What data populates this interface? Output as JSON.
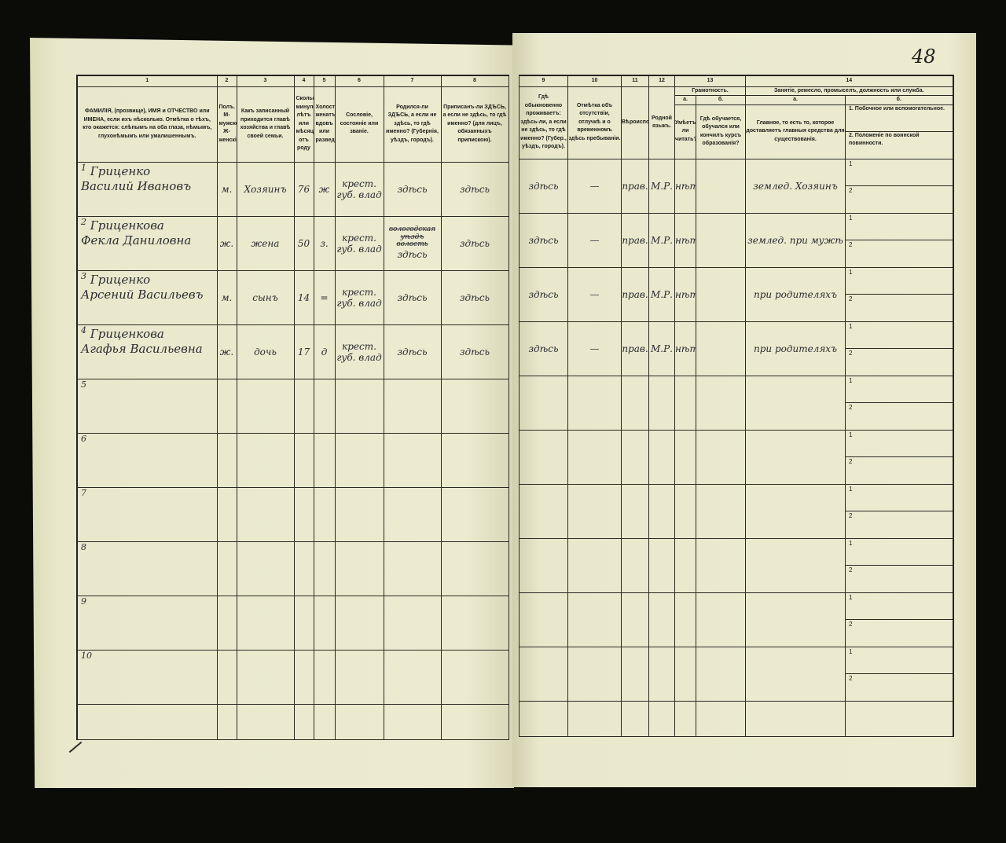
{
  "page_number": "48",
  "left_columns": {
    "numbers": [
      "1",
      "2",
      "3",
      "4",
      "5",
      "6",
      "7",
      "8"
    ],
    "headers": [
      "ФАМИЛІЯ, (прозвище), ИМЯ и ОТЧЕСТВО или ИМЕНА, если ихъ нѣсколько. Отмѣтка о тѣхъ, кто окажется: слѣпымъ на оба глаза, нѣмымъ, глухонѣмымъ или умалишеннымъ.",
      "Полъ. М-мужской. Ж-женскій.",
      "Какъ записанный приходится главѣ хозяйства и главѣ своей семьи.",
      "Сколько минуло лѣтъ или мѣсяцевъ отъ роду",
      "Холостъ, женатъ, вдовъ или разведенъ.",
      "Сословіе, состояніе или званіе.",
      "Родился-ли ЗДѢСЬ, а если не здѣсь, то гдѣ именно? (Губернія, уѣздъ, городъ).",
      "Приписанъ-ли ЗДѢСЬ, а если не здѣсь, то гдѣ именно? (для лицъ, обязанныхъ припискою)."
    ]
  },
  "right_columns": {
    "numbers": [
      "9",
      "10",
      "11",
      "12",
      "13",
      "14"
    ],
    "headers": {
      "c9": "Гдѣ обыкновенно проживаетъ: здѣсь-ли, а если не здѣсь, то гдѣ именно? (Губер., уѣздъ, городъ).",
      "c10": "Отмѣтка объ отсутствіи, отлучкѣ и о временномъ здѣсь пребываніи.",
      "c11": "Вѣроисповѣданіе.",
      "c12": "Родной языкъ.",
      "c13": "Грамотность.",
      "c13a_label": "а.",
      "c13a": "Умѣетъ-ли читать?",
      "c13b_label": "б.",
      "c13b": "Гдѣ обучается, обучался или кончилъ курсъ образованія?",
      "c14": "Занятіе, ремесло, промыселъ, должность или служба.",
      "c14a_label": "а.",
      "c14a": "Главное, то есть то, которое доставляетъ главныя средства для существованія.",
      "c14b_label": "б.",
      "c14b1": "1. Побочное или вспомогательное.",
      "c14b2": "2. Положеніе по воинской повинности."
    }
  },
  "sub_labels": [
    "1",
    "2"
  ],
  "rows": [
    {
      "n": "1",
      "name1": "Гриценко",
      "name2": "Василий Ивановъ",
      "sex": "м.",
      "relation": "Хозяинъ",
      "age": "76",
      "marital": "ж",
      "estate": "крест. губ. влад",
      "born": "здѣсь",
      "registered": "здѣсь",
      "resides": "здѣсь",
      "absence": "—",
      "religion": "прав.",
      "language": "М.Р.",
      "literacy": "нѣтъ",
      "education": "",
      "occupation": "землед. Хозяинъ"
    },
    {
      "n": "2",
      "name1": "Гриценкова",
      "name2": "Фекла Даниловна",
      "sex": "ж.",
      "relation": "жена",
      "age": "50",
      "marital": "з.",
      "estate": "крест. губ. влад",
      "born_struck": "вологодская уѣздъ волость",
      "born": "здѣсь",
      "registered": "здѣсь",
      "resides": "здѣсь",
      "absence": "—",
      "religion": "прав.",
      "language": "М.Р.",
      "literacy": "нѣтъ",
      "education": "",
      "occupation": "землед. при мужѣ"
    },
    {
      "n": "3",
      "name1": "Гриценко",
      "name2": "Арсений Васильевъ",
      "sex": "м.",
      "relation": "сынъ",
      "age": "14",
      "marital": "=",
      "estate": "крест. губ. влад",
      "born": "здѣсь",
      "registered": "здѣсь",
      "resides": "здѣсь",
      "absence": "—",
      "religion": "прав.",
      "language": "М.Р.",
      "literacy": "нѣтъ",
      "education": "",
      "occupation": "при родителяхъ"
    },
    {
      "n": "4",
      "name1": "Гриценкова",
      "name2": "Агафья Васильевна",
      "sex": "ж.",
      "relation": "дочь",
      "age": "17",
      "marital": "д",
      "estate": "крест. губ. влад",
      "born": "здѣсь",
      "registered": "здѣсь",
      "resides": "здѣсь",
      "absence": "—",
      "religion": "прав.",
      "language": "М.Р.",
      "literacy": "нѣтъ",
      "education": "",
      "occupation": "при родителяхъ"
    },
    {
      "n": "5"
    },
    {
      "n": "6"
    },
    {
      "n": "7"
    },
    {
      "n": "8"
    },
    {
      "n": "9"
    },
    {
      "n": "10"
    }
  ]
}
